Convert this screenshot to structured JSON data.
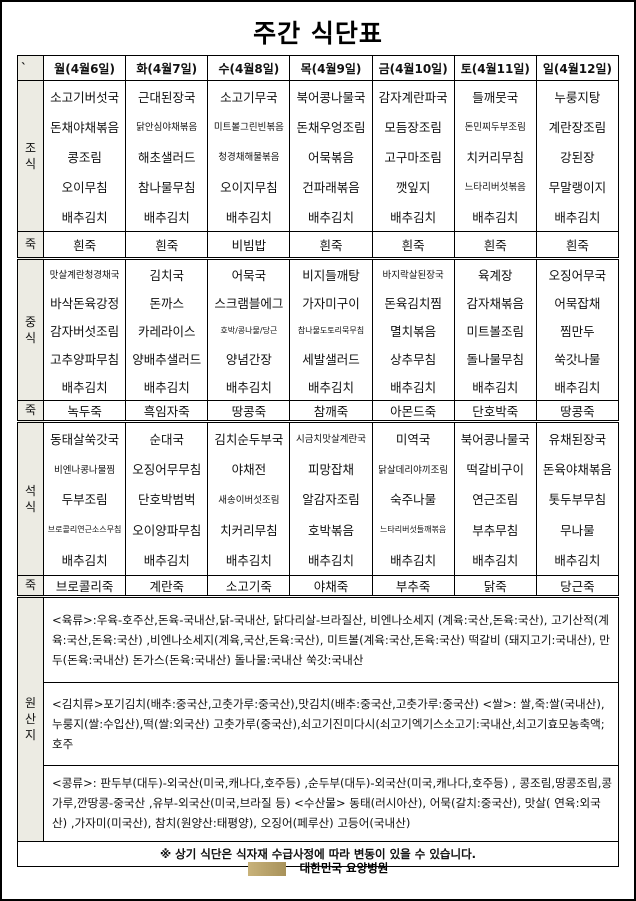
{
  "title": "주간 식단표",
  "corner": "`",
  "days": [
    "월(4월6일)",
    "화(4월7일)",
    "수(4월8일)",
    "목(4월9일)",
    "금(4월10일)",
    "토(4월11일)",
    "일(4월12일)"
  ],
  "meals": [
    {
      "label": "조식",
      "juk_label": "죽",
      "items": [
        [
          "소고기버섯국",
          "돈채야채볶음",
          "콩조림",
          "오이무침",
          "배추김치"
        ],
        [
          "근대된장국",
          "닭안심야채볶음",
          "해초샐러드",
          "참나물무침",
          "배추김치"
        ],
        [
          "소고기무국",
          "미트볼그린빈볶음",
          "청경채해물볶음",
          "오이지무침",
          "배추김치"
        ],
        [
          "북어콩나물국",
          "돈채우엉조림",
          "어묵볶음",
          "건파래볶음",
          "배추김치"
        ],
        [
          "감자계란파국",
          "모듬장조림",
          "고구마조림",
          "깻잎지",
          "배추김치"
        ],
        [
          "들깨뭇국",
          "돈민찌두부조림",
          "치커리무침",
          "느타리버섯볶음",
          "배추김치"
        ],
        [
          "누룽지탕",
          "계란장조림",
          "강된장",
          "무말랭이지",
          "배추김치"
        ]
      ],
      "juk": [
        "흰죽",
        "흰죽",
        "비빔밥",
        "흰죽",
        "흰죽",
        "흰죽",
        "흰죽"
      ]
    },
    {
      "label": "중식",
      "juk_label": "죽",
      "items": [
        [
          "맛살계란청경채국",
          "바삭돈육강정",
          "감자버섯조림",
          "고추양파무침",
          "배추김치"
        ],
        [
          "김치국",
          "돈까스",
          "카레라이스",
          "양배추샐러드",
          "배추김치"
        ],
        [
          "어묵국",
          "스크램블에그",
          "호박/콩나물/당근",
          "양념간장",
          "배추김치"
        ],
        [
          "비지들깨탕",
          "가자미구이",
          "참나물도토리묵무침",
          "세발샐러드",
          "배추김치"
        ],
        [
          "바지락살된장국",
          "돈육김치찜",
          "멸치볶음",
          "상추무침",
          "배추김치"
        ],
        [
          "육계장",
          "감자채볶음",
          "미트볼조림",
          "돌나물무침",
          "배추김치"
        ],
        [
          "오징어무국",
          "어묵잡채",
          "찜만두",
          "쑥갓나물",
          "배추김치"
        ]
      ],
      "juk": [
        "녹두죽",
        "흑임자죽",
        "땅콩죽",
        "참깨죽",
        "아몬드죽",
        "단호박죽",
        "땅콩죽"
      ]
    },
    {
      "label": "석식",
      "juk_label": "죽",
      "items": [
        [
          "동태살쑥갓국",
          "비엔나콩나물찜",
          "두부조림",
          "브로콜리연근소스무침",
          "배추김치"
        ],
        [
          "순대국",
          "오징어무무침",
          "단호박범벅",
          "오이양파무침",
          "배추김치"
        ],
        [
          "김치순두부국",
          "야채전",
          "새송이버섯조림",
          "치커리무침",
          "배추김치"
        ],
        [
          "시금치맛살계란국",
          "피망잡채",
          "알감자조림",
          "호박볶음",
          "배추김치"
        ],
        [
          "미역국",
          "닭살데리야끼조림",
          "숙주나물",
          "느타리버섯들깨볶음",
          "배추김치"
        ],
        [
          "북어콩나물국",
          "떡갈비구이",
          "연근조림",
          "부추무침",
          "배추김치"
        ],
        [
          "유채된장국",
          "돈육야채볶음",
          "톳두부무침",
          "무나물",
          "배추김치"
        ]
      ],
      "juk": [
        "브로콜리죽",
        "계란죽",
        "소고기죽",
        "야채죽",
        "부추죽",
        "닭죽",
        "당근죽"
      ]
    }
  ],
  "origin": {
    "label": "원산지",
    "sections": [
      "<육류>:우육-호주산,돈육-국내산,닭-국내산, 닭다리살-브라질산,  비엔나소세지 (계육:국산,돈육:국산), 고기산적(계육:국산,돈육:국산) ,비엔나소세지(계육,국산,돈육:국산),  미트볼(계육:국산,돈육:국산) 떡갈비 (돼지고기:국내산), 만두(돈육:국내산) 돈가스(돈육:국내산)  돌나물:국내산  쑥갓:국내산",
      "<김치류>포기김치(배추:중국산,고춧가루:중국산),맛김치(배추:중국산,고춧가루:중국산)    <쌀>: 쌀,죽:쌀(국내산),누룽지(쌀:수입산),떡(쌀:외국산)    고춧가루(중국산),쇠고기진미다시(쇠고기엑기스소고기:국내산,쇠고기효모농축액;호주",
      "<콩류>: 판두부(대두)-외국산(미국,캐나다,호주등) ,순두부(대두)-외국산(미국,캐나다,호주등) , 콩조림,땅콩조림,콩가루,깐땅콩-중국산 ,유부-외국산(미국,브라질 등) <수산물> 동태(러시아산), 어묵(갈치:중국산), 맛살( 연육:외국산) ,가자미(미국산), 참치(원양산:태평양), 오징어(페루산)  고등어(국내산)"
    ]
  },
  "notice": "※ 상기 식단은 식자재 수급사정에 따라 변동이 있을 수 있습니다.",
  "footer": {
    "hospital": "대한민국 요양병원"
  },
  "colors": {
    "label_bg": "#ecebe3",
    "logo": "#b9a36a"
  }
}
